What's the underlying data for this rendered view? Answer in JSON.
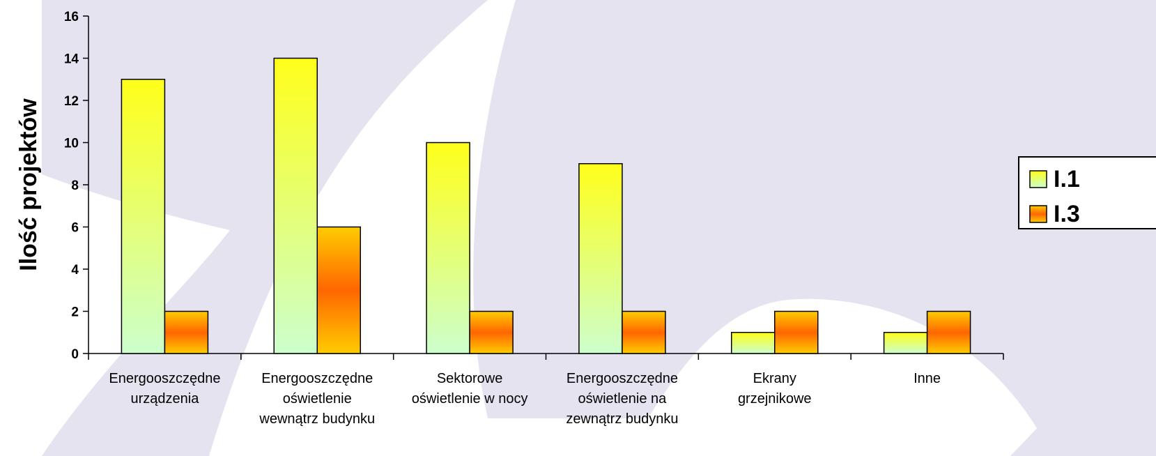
{
  "chart_data": {
    "type": "bar",
    "ylabel": "Ilość projektów",
    "ylim": [
      0,
      16
    ],
    "yticks": [
      0,
      2,
      4,
      6,
      8,
      10,
      12,
      14,
      16
    ],
    "grid": false,
    "legend_position": "right",
    "categories": [
      [
        "Energooszczędne",
        "urządzenia"
      ],
      [
        "Energooszczędne",
        "oświetlenie",
        "wewnątrz budynku"
      ],
      [
        "Sektorowe",
        "oświetlenie w nocy"
      ],
      [
        "Energooszczędne",
        "oświetlenie na",
        "zewnątrz budynku"
      ],
      [
        "Ekrany",
        "grzejnikowe"
      ],
      [
        "Inne"
      ]
    ],
    "series": [
      {
        "name": "I.1",
        "values": [
          13,
          14,
          10,
          9,
          1,
          1
        ]
      },
      {
        "name": "I.3",
        "values": [
          2,
          6,
          2,
          2,
          2,
          2
        ]
      }
    ]
  },
  "colors": {
    "background_shape": "#e6e3f0",
    "series1_top": "#ffff1a",
    "series1_bottom": "#ccffcc",
    "series2_edge": "#ffcc00",
    "series2_mid": "#ff6600",
    "axis": "#000000"
  }
}
